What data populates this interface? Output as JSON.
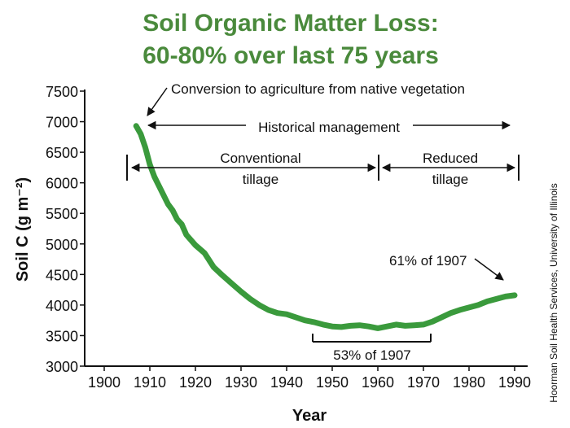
{
  "chart_data": {
    "type": "line",
    "title": "Soil Organic Matter Loss:",
    "subtitle": "60-80% over last 75 years",
    "xlabel": "Year",
    "ylabel": "Soil C (g m⁻²)",
    "xlim": [
      1900,
      1990
    ],
    "ylim": [
      3000,
      7500
    ],
    "x_ticks": [
      1900,
      1910,
      1920,
      1930,
      1940,
      1950,
      1960,
      1970,
      1980,
      1990
    ],
    "y_ticks": [
      3000,
      3500,
      4000,
      4500,
      5000,
      5500,
      6000,
      6500,
      7000,
      7500
    ],
    "grid": false,
    "color": "#3a9a3c",
    "series": [
      {
        "x": [
          1907,
          1908,
          1909,
          1910,
          1911,
          1912,
          1913,
          1914,
          1915,
          1916,
          1917,
          1918,
          1920,
          1922,
          1924,
          1926,
          1928,
          1930,
          1932,
          1934,
          1936,
          1938,
          1940,
          1942,
          1944,
          1946,
          1948,
          1950,
          1952,
          1954,
          1956,
          1958,
          1960,
          1962,
          1964,
          1966,
          1968,
          1970,
          1972,
          1974,
          1976,
          1978,
          1980,
          1982,
          1984,
          1986,
          1988,
          1990
        ],
        "y": [
          6930,
          6800,
          6580,
          6300,
          6100,
          5950,
          5800,
          5650,
          5550,
          5400,
          5320,
          5150,
          4980,
          4850,
          4620,
          4480,
          4350,
          4220,
          4100,
          4000,
          3920,
          3870,
          3850,
          3800,
          3750,
          3720,
          3680,
          3650,
          3640,
          3660,
          3670,
          3650,
          3620,
          3650,
          3680,
          3660,
          3670,
          3680,
          3730,
          3800,
          3870,
          3920,
          3960,
          4000,
          4060,
          4100,
          4140,
          4160
        ]
      }
    ],
    "annotations": {
      "conversion": "Conversion to agriculture from native vegetation",
      "historical": "Historical management",
      "conventional_line1": "Conventional",
      "conventional_line2": "tillage",
      "reduced_line1": "Reduced",
      "reduced_line2": "tillage",
      "pct_61": "61% of 1907",
      "pct_53": "53% of 1907"
    }
  },
  "credit": "Hoorman Soil Health Services, University of Illinois"
}
